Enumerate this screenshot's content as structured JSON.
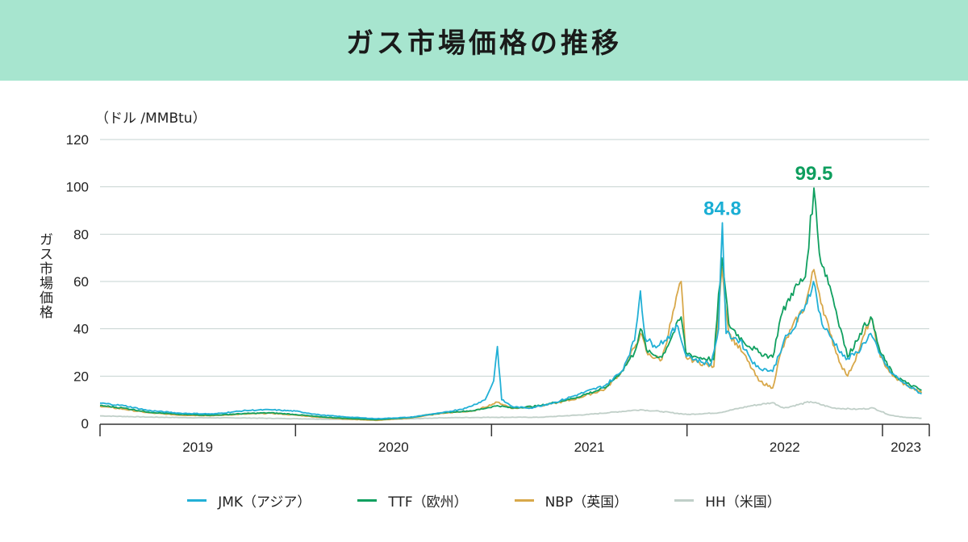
{
  "header": {
    "title": "ガス市場価格の推移"
  },
  "chart_data": {
    "type": "line",
    "title": "ガス市場価格の推移",
    "unit_label": "（ドル /MMBtu）",
    "ylabel": "ガス市場価格",
    "ylim": [
      0,
      120
    ],
    "yticks": [
      0,
      20,
      40,
      60,
      80,
      100,
      120
    ],
    "xlim": [
      "2019-01-01",
      "2023-03-15"
    ],
    "xtick_labels": [
      "2019",
      "2020",
      "2021",
      "2022",
      "2023"
    ],
    "grid": true,
    "legend_position": "bottom",
    "annotations": [
      {
        "text": "84.8",
        "series": "JMK（アジア）",
        "x": "2022-03-08",
        "y": 84.8,
        "color": "#1aaed4"
      },
      {
        "text": "99.5",
        "series": "TTF（欧州）",
        "x": "2022-08-26",
        "y": 99.5,
        "color": "#0e9e5e"
      }
    ],
    "series": [
      {
        "name": "JMK（アジア）",
        "color": "#22b0d6",
        "points": [
          [
            "2019-01-01",
            8.6
          ],
          [
            "2019-02-15",
            7.5
          ],
          [
            "2019-04-01",
            5.5
          ],
          [
            "2019-06-01",
            4.3
          ],
          [
            "2019-08-01",
            4.0
          ],
          [
            "2019-10-01",
            5.5
          ],
          [
            "2019-11-15",
            5.8
          ],
          [
            "2020-01-01",
            5.2
          ],
          [
            "2020-02-15",
            3.6
          ],
          [
            "2020-04-01",
            2.8
          ],
          [
            "2020-06-01",
            2.0
          ],
          [
            "2020-08-01",
            2.6
          ],
          [
            "2020-10-01",
            4.5
          ],
          [
            "2020-11-15",
            6.5
          ],
          [
            "2020-12-20",
            10
          ],
          [
            "2021-01-05",
            18
          ],
          [
            "2021-01-12",
            32.5
          ],
          [
            "2021-01-20",
            10
          ],
          [
            "2021-02-10",
            7
          ],
          [
            "2021-03-15",
            6.5
          ],
          [
            "2021-05-01",
            9
          ],
          [
            "2021-06-15",
            12.5
          ],
          [
            "2021-08-01",
            16
          ],
          [
            "2021-09-01",
            22
          ],
          [
            "2021-09-25",
            35
          ],
          [
            "2021-10-06",
            56
          ],
          [
            "2021-10-15",
            36
          ],
          [
            "2021-11-01",
            33
          ],
          [
            "2021-11-20",
            35
          ],
          [
            "2021-12-15",
            41
          ],
          [
            "2021-12-28",
            30
          ],
          [
            "2022-01-15",
            27
          ],
          [
            "2022-02-15",
            25
          ],
          [
            "2022-03-01",
            40
          ],
          [
            "2022-03-08",
            84.8
          ],
          [
            "2022-03-15",
            38
          ],
          [
            "2022-04-10",
            35
          ],
          [
            "2022-05-10",
            24
          ],
          [
            "2022-06-10",
            22
          ],
          [
            "2022-07-01",
            35
          ],
          [
            "2022-07-20",
            40
          ],
          [
            "2022-08-10",
            50
          ],
          [
            "2022-08-25",
            60
          ],
          [
            "2022-09-10",
            42
          ],
          [
            "2022-10-01",
            35
          ],
          [
            "2022-10-25",
            27
          ],
          [
            "2022-11-15",
            30
          ],
          [
            "2022-12-10",
            38
          ],
          [
            "2022-12-25",
            30
          ],
          [
            "2023-01-15",
            22
          ],
          [
            "2023-02-10",
            17
          ],
          [
            "2023-03-15",
            12.5
          ]
        ]
      },
      {
        "name": "TTF（欧州）",
        "color": "#10a060",
        "points": [
          [
            "2019-01-01",
            7.6
          ],
          [
            "2019-02-15",
            6.5
          ],
          [
            "2019-04-01",
            4.8
          ],
          [
            "2019-06-01",
            3.8
          ],
          [
            "2019-08-01",
            3.5
          ],
          [
            "2019-10-01",
            4.2
          ],
          [
            "2019-11-15",
            4.5
          ],
          [
            "2020-01-01",
            3.8
          ],
          [
            "2020-02-15",
            2.8
          ],
          [
            "2020-04-01",
            2.2
          ],
          [
            "2020-06-01",
            1.6
          ],
          [
            "2020-08-01",
            2.5
          ],
          [
            "2020-10-01",
            4.5
          ],
          [
            "2020-12-01",
            5.5
          ],
          [
            "2021-01-12",
            7.5
          ],
          [
            "2021-02-10",
            6.5
          ],
          [
            "2021-04-01",
            7.5
          ],
          [
            "2021-06-01",
            10.5
          ],
          [
            "2021-08-01",
            15
          ],
          [
            "2021-09-01",
            22
          ],
          [
            "2021-09-25",
            30
          ],
          [
            "2021-10-06",
            40
          ],
          [
            "2021-10-20",
            30
          ],
          [
            "2021-11-15",
            28
          ],
          [
            "2021-12-21",
            45
          ],
          [
            "2021-12-30",
            30
          ],
          [
            "2022-01-20",
            28
          ],
          [
            "2022-02-20",
            27
          ],
          [
            "2022-03-07",
            70
          ],
          [
            "2022-03-20",
            42
          ],
          [
            "2022-04-15",
            35
          ],
          [
            "2022-05-15",
            30
          ],
          [
            "2022-06-10",
            28
          ],
          [
            "2022-06-25",
            45
          ],
          [
            "2022-07-15",
            55
          ],
          [
            "2022-08-10",
            62
          ],
          [
            "2022-08-26",
            99.5
          ],
          [
            "2022-09-05",
            72
          ],
          [
            "2022-09-25",
            58
          ],
          [
            "2022-10-15",
            40
          ],
          [
            "2022-10-28",
            28
          ],
          [
            "2022-11-20",
            38
          ],
          [
            "2022-12-10",
            45
          ],
          [
            "2022-12-28",
            30
          ],
          [
            "2023-01-20",
            21
          ],
          [
            "2023-02-15",
            17
          ],
          [
            "2023-03-15",
            14
          ]
        ]
      },
      {
        "name": "NBP（英国）",
        "color": "#d8a84a",
        "points": [
          [
            "2019-01-01",
            7.3
          ],
          [
            "2019-02-15",
            6.0
          ],
          [
            "2019-04-01",
            4.5
          ],
          [
            "2019-06-01",
            3.5
          ],
          [
            "2019-08-01",
            3.3
          ],
          [
            "2019-10-01",
            4.0
          ],
          [
            "2019-11-15",
            4.3
          ],
          [
            "2020-01-01",
            3.5
          ],
          [
            "2020-02-15",
            2.6
          ],
          [
            "2020-04-01",
            1.9
          ],
          [
            "2020-06-01",
            1.3
          ],
          [
            "2020-08-01",
            2.3
          ],
          [
            "2020-10-01",
            4.3
          ],
          [
            "2020-12-01",
            5.3
          ],
          [
            "2021-01-12",
            9
          ],
          [
            "2021-02-10",
            6.3
          ],
          [
            "2021-04-01",
            7.3
          ],
          [
            "2021-06-01",
            10
          ],
          [
            "2021-08-01",
            14.5
          ],
          [
            "2021-09-01",
            22
          ],
          [
            "2021-09-25",
            32
          ],
          [
            "2021-10-06",
            38
          ],
          [
            "2021-10-20",
            29
          ],
          [
            "2021-11-15",
            27
          ],
          [
            "2021-12-21",
            60
          ],
          [
            "2021-12-30",
            28
          ],
          [
            "2022-01-20",
            26
          ],
          [
            "2022-02-20",
            24
          ],
          [
            "2022-03-07",
            66
          ],
          [
            "2022-03-20",
            38
          ],
          [
            "2022-04-15",
            30
          ],
          [
            "2022-05-15",
            18
          ],
          [
            "2022-06-10",
            15
          ],
          [
            "2022-06-25",
            30
          ],
          [
            "2022-07-15",
            40
          ],
          [
            "2022-08-10",
            50
          ],
          [
            "2022-08-26",
            65
          ],
          [
            "2022-09-05",
            55
          ],
          [
            "2022-09-25",
            38
          ],
          [
            "2022-10-15",
            25
          ],
          [
            "2022-10-28",
            20
          ],
          [
            "2022-11-20",
            32
          ],
          [
            "2022-12-10",
            45
          ],
          [
            "2022-12-28",
            28
          ],
          [
            "2023-01-20",
            20
          ],
          [
            "2023-02-15",
            16
          ],
          [
            "2023-03-15",
            13
          ]
        ]
      },
      {
        "name": "HH（米国）",
        "color": "#c0cfc8",
        "points": [
          [
            "2019-01-01",
            3.2
          ],
          [
            "2019-04-01",
            2.7
          ],
          [
            "2019-07-01",
            2.4
          ],
          [
            "2019-10-01",
            2.3
          ],
          [
            "2020-01-01",
            2.0
          ],
          [
            "2020-04-01",
            1.7
          ],
          [
            "2020-07-01",
            1.7
          ],
          [
            "2020-10-01",
            2.4
          ],
          [
            "2021-01-01",
            2.6
          ],
          [
            "2021-04-01",
            2.6
          ],
          [
            "2021-07-01",
            3.8
          ],
          [
            "2021-10-06",
            5.8
          ],
          [
            "2021-11-15",
            5.0
          ],
          [
            "2022-01-01",
            3.8
          ],
          [
            "2022-03-01",
            4.5
          ],
          [
            "2022-05-01",
            7.5
          ],
          [
            "2022-06-10",
            8.8
          ],
          [
            "2022-07-01",
            6.5
          ],
          [
            "2022-08-20",
            9.2
          ],
          [
            "2022-10-01",
            6.5
          ],
          [
            "2022-11-15",
            6.0
          ],
          [
            "2022-12-15",
            6.5
          ],
          [
            "2023-01-15",
            3.5
          ],
          [
            "2023-02-15",
            2.5
          ],
          [
            "2023-03-15",
            2.2
          ]
        ]
      }
    ]
  }
}
